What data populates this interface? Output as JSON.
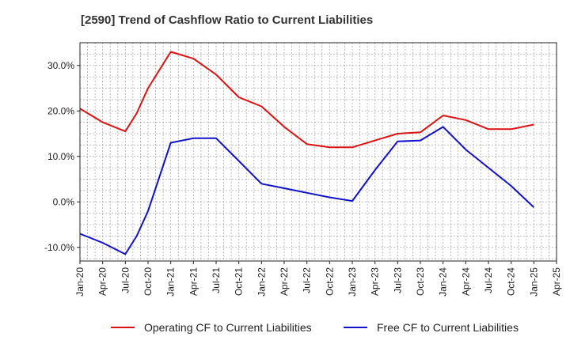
{
  "chart_data": {
    "type": "line",
    "title": "[2590]  Trend of Cashflow Ratio to Current Liabilities",
    "xlabel": "",
    "ylabel": "",
    "x": [
      "Jan-20",
      "Apr-20",
      "Jul-20",
      "Oct-20",
      "Jan-21",
      "Apr-21",
      "Jul-21",
      "Oct-21",
      "Jan-22",
      "Apr-22",
      "Jul-22",
      "Oct-22",
      "Jan-23",
      "Apr-23",
      "Jul-23",
      "Oct-23",
      "Jan-24",
      "Apr-24",
      "Jul-24",
      "Oct-24",
      "Jan-25",
      "Apr-25"
    ],
    "ylim": [
      -13,
      35
    ],
    "yticks": [
      -10,
      0,
      10,
      20,
      30
    ],
    "ytick_labels": [
      "-10.0%",
      "0.0%",
      "10.0%",
      "20.0%",
      "30.0%"
    ],
    "grid": true,
    "legend_position": "bottom",
    "series": [
      {
        "name": "Operating CF to Current Liabilities",
        "color": "#dd1111",
        "points": [
          [
            0,
            20.5
          ],
          [
            1,
            17.5
          ],
          [
            2,
            15.5
          ],
          [
            2.5,
            19.5
          ],
          [
            3,
            25
          ],
          [
            4,
            33
          ],
          [
            5,
            31.5
          ],
          [
            6,
            28
          ],
          [
            7,
            23
          ],
          [
            8,
            21
          ],
          [
            9,
            16.5
          ],
          [
            10,
            12.7
          ],
          [
            11,
            12
          ],
          [
            12,
            12
          ],
          [
            13,
            13.5
          ],
          [
            14,
            15
          ],
          [
            15,
            15.3
          ],
          [
            16,
            19
          ],
          [
            17,
            18
          ],
          [
            18,
            16
          ],
          [
            19,
            16
          ],
          [
            20,
            17
          ]
        ]
      },
      {
        "name": "Free CF to Current Liabilities",
        "color": "#1111cc",
        "points": [
          [
            0,
            -7
          ],
          [
            1,
            -9
          ],
          [
            2,
            -11.5
          ],
          [
            2.5,
            -7.5
          ],
          [
            3,
            -2
          ],
          [
            4,
            13
          ],
          [
            5,
            14
          ],
          [
            6,
            14
          ],
          [
            7,
            9
          ],
          [
            8,
            4
          ],
          [
            9,
            3
          ],
          [
            10,
            2
          ],
          [
            11,
            1
          ],
          [
            12,
            0.2
          ],
          [
            13,
            7
          ],
          [
            14,
            13.3
          ],
          [
            15,
            13.5
          ],
          [
            16,
            16.5
          ],
          [
            17,
            11.5
          ],
          [
            18,
            7.5
          ],
          [
            19,
            3.5
          ],
          [
            20,
            -1.2
          ]
        ]
      }
    ]
  }
}
